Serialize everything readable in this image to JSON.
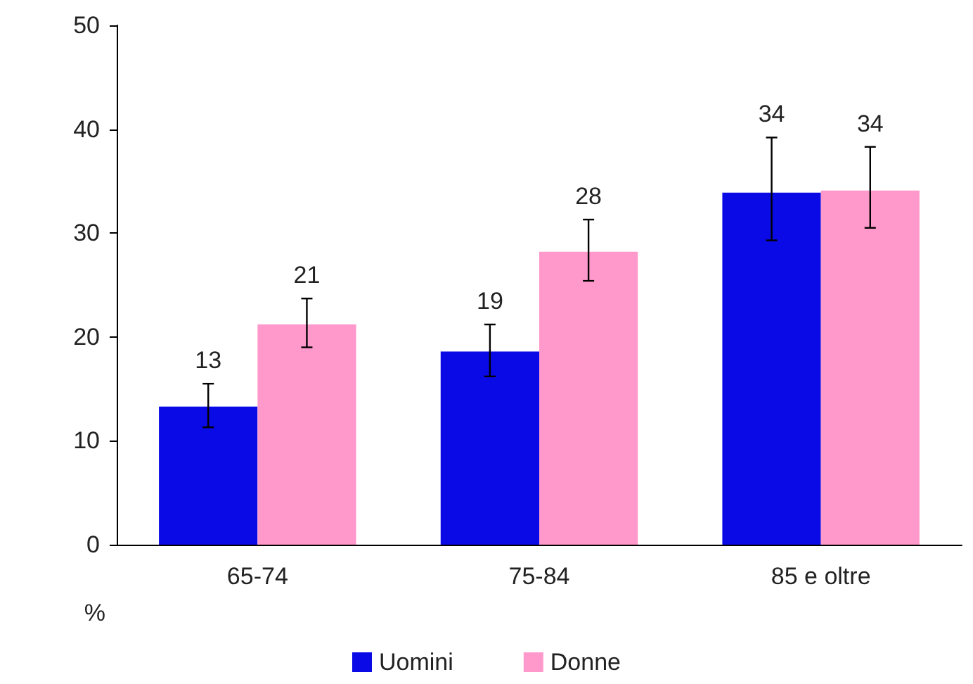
{
  "chart_data": {
    "type": "bar",
    "ylabel": "%",
    "categories": [
      "65-74",
      "75-84",
      "85 e oltre"
    ],
    "series": [
      {
        "name": "Uomini",
        "color": "#0a0ae6",
        "values": [
          13.3,
          18.6,
          33.9
        ],
        "value_labels": [
          "13",
          "19",
          "34"
        ],
        "errors": [
          [
            11.3,
            15.5
          ],
          [
            16.2,
            21.2
          ],
          [
            29.3,
            39.2
          ]
        ]
      },
      {
        "name": "Donne",
        "color": "#ff99cc",
        "values": [
          21.2,
          28.2,
          34.1
        ],
        "value_labels": [
          "21",
          "28",
          "34"
        ],
        "errors": [
          [
            19.0,
            23.7
          ],
          [
            25.4,
            31.3
          ],
          [
            30.5,
            38.3
          ]
        ]
      }
    ],
    "ylim": [
      0,
      50
    ],
    "yticks": [
      0,
      10,
      20,
      30,
      40,
      50
    ],
    "grid": false,
    "legend": "bottom"
  }
}
